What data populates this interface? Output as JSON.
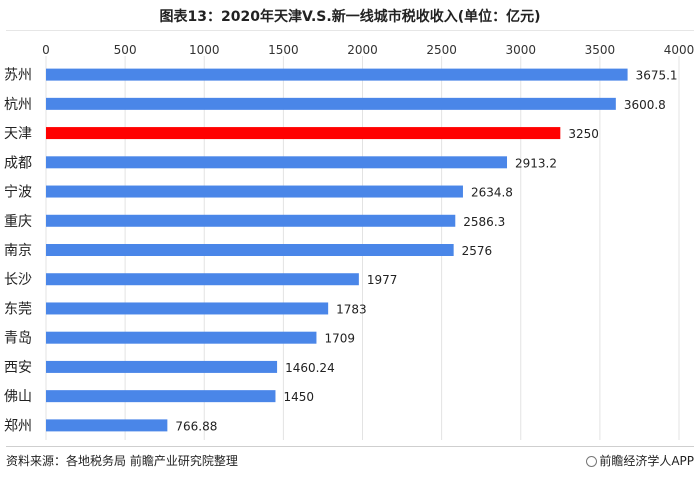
{
  "title": "图表13：2020年天津V.S.新一线城市税收收入(单位：亿元)",
  "footer": {
    "source": "资料来源：各地税务局 前瞻产业研究院整理",
    "brand": "前瞻经济学人APP"
  },
  "colors": {
    "bar": "#4a86e8",
    "highlight": "#ff0000",
    "grid": "#e3e3e3"
  },
  "chart_data": {
    "type": "bar",
    "orientation": "horizontal",
    "title": "图表13：2020年天津V.S.新一线城市税收收入(单位：亿元)",
    "xlim": [
      0,
      4000
    ],
    "ticks": [
      0,
      500,
      1000,
      1500,
      2000,
      2500,
      3000,
      3500,
      4000
    ],
    "tick_labels": [
      "0",
      "500",
      "1000",
      "1500",
      "2000",
      "2500",
      "3000",
      "3500",
      "4000"
    ],
    "axis_position": "top",
    "grid": true,
    "categories": [
      "苏州",
      "杭州",
      "天津",
      "成都",
      "宁波",
      "重庆",
      "南京",
      "长沙",
      "东莞",
      "青岛",
      "西安",
      "佛山",
      "郑州"
    ],
    "values": [
      3675.1,
      3600.8,
      3250,
      2913.2,
      2634.8,
      2586.3,
      2576,
      1977,
      1783,
      1709,
      1460.24,
      1450,
      766.88
    ],
    "value_labels": [
      "3675.1",
      "3600.8",
      "3250",
      "2913.2",
      "2634.8",
      "2586.3",
      "2576",
      "1977",
      "1783",
      "1709",
      "1460.24",
      "1450",
      "766.88"
    ],
    "highlight_category": "天津"
  }
}
